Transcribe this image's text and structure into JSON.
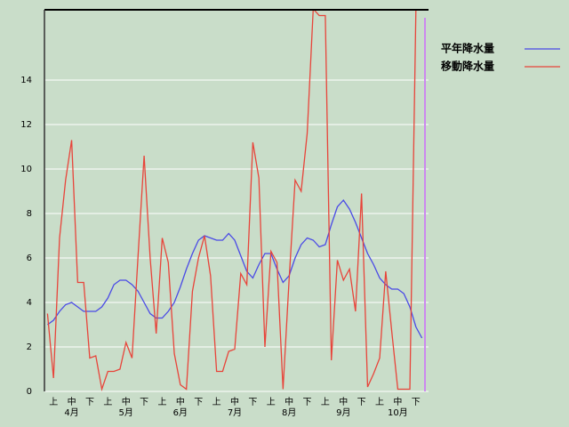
{
  "chart_data": {
    "type": "line",
    "categories": [
      null,
      "上",
      null,
      null,
      "中",
      null,
      null,
      "下",
      null,
      null,
      "上",
      null,
      null,
      "中",
      null,
      null,
      "下",
      null,
      null,
      "上",
      null,
      null,
      "中",
      null,
      null,
      "下",
      null,
      null,
      "上",
      null,
      null,
      "中",
      null,
      null,
      "下",
      null,
      null,
      "上",
      null,
      null,
      "中",
      null,
      null,
      "下",
      null,
      null,
      "上",
      null,
      null,
      "中",
      null,
      null,
      "下",
      null,
      null,
      "上",
      null,
      null,
      "中",
      null,
      null,
      "下",
      null
    ],
    "month_labels": [
      "4月",
      "5月",
      "6月",
      "7月",
      "8月",
      "9月",
      "10月"
    ],
    "series": [
      {
        "name": "平年降水量",
        "color": "#4a4ae6",
        "values": [
          3.0,
          3.2,
          3.6,
          3.9,
          4.0,
          3.8,
          3.6,
          3.6,
          3.6,
          3.8,
          4.2,
          4.8,
          5.0,
          5.0,
          4.8,
          4.5,
          4.0,
          3.5,
          3.3,
          3.3,
          3.6,
          4.0,
          4.7,
          5.5,
          6.2,
          6.8,
          7.0,
          6.9,
          6.8,
          6.8,
          7.1,
          6.8,
          6.1,
          5.4,
          5.1,
          5.7,
          6.2,
          6.2,
          5.5,
          4.9,
          5.2,
          6.0,
          6.6,
          6.9,
          6.8,
          6.5,
          6.6,
          7.5,
          8.3,
          8.6,
          8.2,
          7.6,
          6.9,
          6.2,
          5.7,
          5.1,
          4.8,
          4.6,
          4.6,
          4.4,
          3.8,
          2.9,
          2.4
        ]
      },
      {
        "name": "移動降水量",
        "color": "#e8443a",
        "values": [
          3.5,
          0.6,
          6.9,
          9.5,
          11.3,
          4.9,
          4.9,
          1.5,
          1.6,
          0.1,
          0.9,
          0.9,
          1.0,
          2.2,
          1.5,
          6.1,
          10.6,
          6.0,
          2.6,
          6.9,
          5.8,
          1.7,
          0.3,
          0.1,
          4.5,
          6.0,
          7.0,
          5.2,
          0.9,
          0.9,
          1.8,
          1.9,
          5.3,
          4.8,
          11.2,
          9.6,
          2.0,
          6.3,
          5.8,
          0.1,
          5.0,
          9.5,
          9.0,
          11.6,
          17.2,
          16.9,
          16.9,
          1.4,
          5.9,
          5.0,
          5.5,
          3.6,
          8.9,
          0.2,
          0.8,
          1.5,
          5.4,
          2.7,
          0.1,
          0.1,
          0.1,
          17.2,
          17.2
        ]
      }
    ],
    "ylim": [
      0,
      17.16
    ],
    "yticks": [
      0,
      2,
      4,
      6,
      8,
      10,
      12,
      14
    ],
    "grid": true
  }
}
